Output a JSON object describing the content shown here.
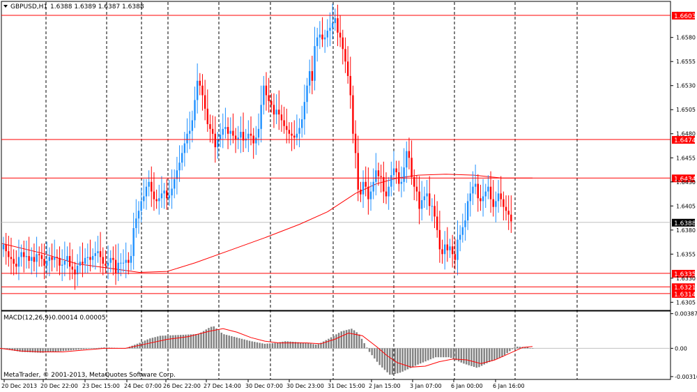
{
  "window": {
    "header_symbol": "GBPUSD,H1",
    "header_quote": "1.6388 1.6389 1.6387 1.6388"
  },
  "macd": {
    "label": "MACD(12,26,9)",
    "values": "-0.00014 0.00005",
    "copyright": "MetaTrader, © 2001-2013, MetaQuotes Software Corp."
  },
  "chart_data": {
    "type": "candlestick",
    "symbol": "GBPUSD",
    "timeframe": "H1",
    "price_axis_ticks": [
      "1.6580",
      "1.6555",
      "1.6530",
      "1.6505",
      "1.6480",
      "1.6455",
      "1.6430",
      "1.6405",
      "1.6380",
      "1.6355",
      "1.6330",
      "1.6305"
    ],
    "price_range": [
      1.6298,
      1.6616
    ],
    "macd_axis_ticks": [
      "0.00387",
      "0.00",
      "-0.00316"
    ],
    "macd_range": [
      -0.0034,
      0.004
    ],
    "time_labels": [
      "20 Dec 2013",
      "20 Dec 22:00",
      "23 Dec 15:00",
      "24 Dec 07:00",
      "26 Dec 22:00",
      "27 Dec 14:00",
      "30 Dec 07:00",
      "30 Dec 23:00",
      "31 Dec 15:00",
      "2 Jan 15:00",
      "3 Jan 07:00",
      "6 Jan 00:00",
      "6 Jan 16:00"
    ],
    "current_price": "1.6388",
    "horizontal_levels": [
      {
        "label": "1.6603",
        "price": 1.6603,
        "color": "#ff0000"
      },
      {
        "label": "1.6474",
        "price": 1.6474,
        "color": "#ff0000"
      },
      {
        "label": "1.6434",
        "price": 1.6434,
        "color": "#ff0000"
      },
      {
        "label": "1.6335",
        "price": 1.6335,
        "color": "#ff0000"
      },
      {
        "label": "1.6321",
        "price": 1.6321,
        "color": "#ff0000"
      },
      {
        "label": "1.6314",
        "price": 1.6314,
        "color": "#ff0000"
      }
    ],
    "close_path": [
      1.6365,
      1.6358,
      1.6352,
      1.635,
      1.6345,
      1.6342,
      1.6352,
      1.6357,
      1.6352,
      1.6353,
      1.6348,
      1.6352,
      1.6347,
      1.6355,
      1.6354,
      1.635,
      1.6343,
      1.6348,
      1.6352,
      1.6349,
      1.6352,
      1.6351,
      1.6343,
      1.6344,
      1.6348,
      1.6353,
      1.6342,
      1.6339,
      1.6334,
      1.6343,
      1.6347,
      1.6345,
      1.6351,
      1.6352,
      1.6349,
      1.6353,
      1.6356,
      1.6358,
      1.6352,
      1.6345,
      1.6343,
      1.6346,
      1.6351,
      1.6349,
      1.6335,
      1.6346,
      1.6346,
      1.6346,
      1.6349,
      1.6346,
      1.6353,
      1.6382,
      1.6392,
      1.64,
      1.641,
      1.6415,
      1.6425,
      1.643,
      1.642,
      1.6412,
      1.641,
      1.6413,
      1.6418,
      1.6421,
      1.6413,
      1.6416,
      1.6423,
      1.6433,
      1.6442,
      1.645,
      1.646,
      1.647,
      1.648,
      1.6483,
      1.6494,
      1.6515,
      1.6535,
      1.653,
      1.652,
      1.6506,
      1.649,
      1.6485,
      1.648,
      1.6466,
      1.6474,
      1.6479,
      1.6485,
      1.6487,
      1.648,
      1.6483,
      1.6478,
      1.6474,
      1.6476,
      1.6482,
      1.6473,
      1.6475,
      1.648,
      1.6478,
      1.647,
      1.6476,
      1.6485,
      1.651,
      1.653,
      1.652,
      1.6514,
      1.651,
      1.65,
      1.6505,
      1.65,
      1.6494,
      1.6488,
      1.6484,
      1.648,
      1.6478,
      1.6476,
      1.648,
      1.6486,
      1.6495,
      1.6513,
      1.653,
      1.6545,
      1.6535,
      1.6571,
      1.658,
      1.6583,
      1.6578,
      1.658,
      1.6587,
      1.659,
      1.6595,
      1.66,
      1.6585,
      1.658,
      1.6568,
      1.6555,
      1.654,
      1.652,
      1.648,
      1.646,
      1.6422,
      1.6417,
      1.643,
      1.6425,
      1.6412,
      1.642,
      1.643,
      1.6442,
      1.6436,
      1.6435,
      1.642,
      1.6415,
      1.6425,
      1.6437,
      1.6444,
      1.644,
      1.6428,
      1.643,
      1.6445,
      1.6462,
      1.6455,
      1.6435,
      1.6425,
      1.642,
      1.6402,
      1.6411,
      1.6415,
      1.6418,
      1.6405,
      1.6405,
      1.6394,
      1.638,
      1.636,
      1.6355,
      1.6365,
      1.6359,
      1.6363,
      1.6355,
      1.6349,
      1.637,
      1.6375,
      1.6383,
      1.639,
      1.641,
      1.6418,
      1.6425,
      1.6428,
      1.6413,
      1.641,
      1.6415,
      1.642,
      1.6425,
      1.6412,
      1.6404,
      1.641,
      1.6418,
      1.6412,
      1.6404,
      1.64,
      1.6396,
      1.6389
    ],
    "ma_points": [
      [
        3,
        1.6366
      ],
      [
        60,
        1.6356
      ],
      [
        110,
        1.6345
      ],
      [
        160,
        1.634
      ],
      [
        200,
        1.6336
      ],
      [
        240,
        1.6337
      ],
      [
        280,
        1.6346
      ],
      [
        330,
        1.6359
      ],
      [
        380,
        1.6372
      ],
      [
        430,
        1.6386
      ],
      [
        470,
        1.6399
      ],
      [
        510,
        1.6418
      ],
      [
        540,
        1.6428
      ],
      [
        570,
        1.6434
      ],
      [
        600,
        1.6437
      ],
      [
        640,
        1.6438
      ],
      [
        680,
        1.6437
      ],
      [
        720,
        1.6434
      ],
      [
        764,
        1.6434
      ]
    ],
    "macd_hist": [
      [
        0,
        0.0
      ],
      [
        30,
        -0.0004
      ],
      [
        60,
        -0.0005
      ],
      [
        90,
        -0.0003
      ],
      [
        120,
        -0.0001
      ],
      [
        150,
        0.0001
      ],
      [
        180,
        0.0
      ],
      [
        200,
        0.0006
      ],
      [
        215,
        0.0011
      ],
      [
        230,
        0.0014
      ],
      [
        260,
        0.0015
      ],
      [
        285,
        0.0016
      ],
      [
        300,
        0.0023
      ],
      [
        306,
        0.0025
      ],
      [
        320,
        0.0016
      ],
      [
        340,
        0.0012
      ],
      [
        360,
        0.0008
      ],
      [
        380,
        0.0005
      ],
      [
        395,
        0.0006
      ],
      [
        410,
        0.0008
      ],
      [
        425,
        0.0007
      ],
      [
        440,
        0.0006
      ],
      [
        455,
        0.0004
      ],
      [
        470,
        0.001
      ],
      [
        490,
        0.0019
      ],
      [
        505,
        0.0022
      ],
      [
        515,
        0.0016
      ],
      [
        530,
        -0.0004
      ],
      [
        545,
        -0.0019
      ],
      [
        560,
        -0.003
      ],
      [
        575,
        -0.0027
      ],
      [
        600,
        -0.0018
      ],
      [
        625,
        -0.001
      ],
      [
        645,
        -0.001
      ],
      [
        665,
        -0.0017
      ],
      [
        685,
        -0.0022
      ],
      [
        700,
        -0.0016
      ],
      [
        720,
        -0.001
      ],
      [
        740,
        0.0002
      ],
      [
        760,
        0.0001
      ]
    ],
    "macd_signal": [
      [
        0,
        0.0
      ],
      [
        30,
        -0.0003
      ],
      [
        60,
        -0.0004
      ],
      [
        90,
        -0.0004
      ],
      [
        120,
        -0.0002
      ],
      [
        150,
        0.0
      ],
      [
        180,
        0.0
      ],
      [
        210,
        0.0005
      ],
      [
        240,
        0.001
      ],
      [
        270,
        0.0013
      ],
      [
        300,
        0.0019
      ],
      [
        320,
        0.0022
      ],
      [
        340,
        0.0018
      ],
      [
        360,
        0.0012
      ],
      [
        380,
        0.0008
      ],
      [
        400,
        0.0006
      ],
      [
        420,
        0.0006
      ],
      [
        440,
        0.0006
      ],
      [
        460,
        0.0005
      ],
      [
        480,
        0.001
      ],
      [
        500,
        0.0017
      ],
      [
        520,
        0.0014
      ],
      [
        540,
        0.0002
      ],
      [
        555,
        -0.0008
      ],
      [
        570,
        -0.0016
      ],
      [
        590,
        -0.0021
      ],
      [
        610,
        -0.002
      ],
      [
        630,
        -0.0015
      ],
      [
        650,
        -0.0012
      ],
      [
        670,
        -0.0013
      ],
      [
        690,
        -0.0017
      ],
      [
        710,
        -0.0013
      ],
      [
        730,
        -0.0006
      ],
      [
        750,
        0.0001
      ],
      [
        764,
        0.0002
      ]
    ]
  }
}
